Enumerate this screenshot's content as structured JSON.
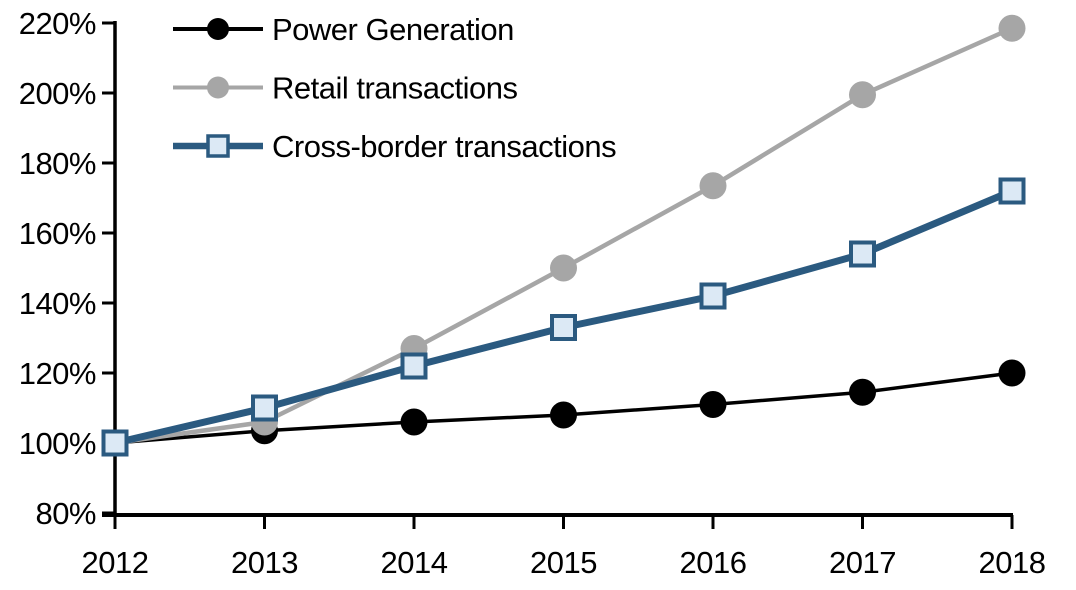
{
  "chart_data": {
    "type": "line",
    "title": "",
    "xlabel": "",
    "ylabel": "",
    "x_categories": [
      "2012",
      "2013",
      "2014",
      "2015",
      "2016",
      "2017",
      "2018"
    ],
    "y_ticks": [
      80,
      100,
      120,
      140,
      160,
      180,
      200,
      220
    ],
    "y_tick_labels": [
      "80%",
      "100%",
      "120%",
      "140%",
      "160%",
      "180%",
      "200%",
      "220%"
    ],
    "ylim": [
      80,
      220
    ],
    "grid": false,
    "legend_position": "inside-top-left",
    "series": [
      {
        "name": "Power Generation",
        "color": "#000000",
        "marker": "circle",
        "marker_fill": "#000000",
        "line_width": 3.5,
        "values": [
          100,
          103.5,
          106,
          108,
          111,
          114.5,
          120
        ]
      },
      {
        "name": "Retail transactions",
        "color": "#A6A6A6",
        "marker": "circle",
        "marker_fill": "#A6A6A6",
        "line_width": 4.5,
        "values": [
          100,
          106,
          127,
          150,
          173.5,
          199.5,
          218.5
        ]
      },
      {
        "name": "Cross-border transactions",
        "color": "#2B5A80",
        "marker": "square",
        "marker_fill": "#DCE9F5",
        "line_width": 7,
        "values": [
          100,
          110,
          122,
          133,
          142,
          154,
          172
        ]
      }
    ]
  },
  "colors": {
    "axis": "#000000",
    "background": "#FFFFFF",
    "accent_blue": "#2B5A80",
    "accent_blue_light": "#DCE9F5",
    "accent_gray": "#A6A6A6"
  }
}
